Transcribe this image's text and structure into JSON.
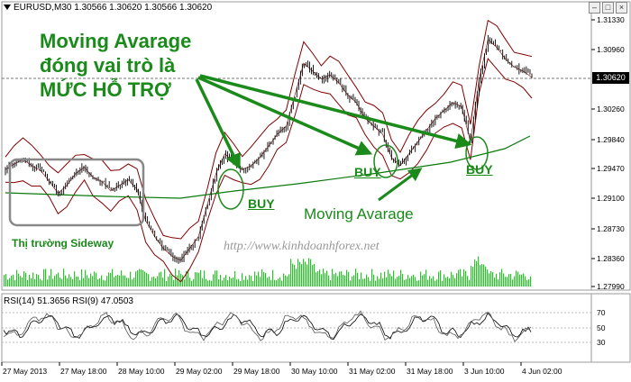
{
  "header": {
    "title": "EURUSD,M30  1.30566 1.30620 1.30566 1.30620",
    "window_buttons": [
      "–",
      "□",
      "×"
    ]
  },
  "annotations": {
    "headline": [
      "Moving Avarage",
      "đóng vai trò là",
      "MỨC HỖ TRỢ"
    ],
    "buy_labels": [
      "BUY",
      "BUY",
      "BUY"
    ],
    "moving_average_label": "Moving Avarage",
    "sideway_label": "Thị trường Sideway",
    "watermark": "http://www.kinhdoanhforex.net"
  },
  "price_axis": {
    "ticks": [
      "1.31330",
      "1.30960",
      "1.30620",
      "1.30260",
      "1.29840",
      "1.29470",
      "1.29100",
      "1.28730",
      "1.28360",
      "1.27990"
    ],
    "current_price": "1.30620"
  },
  "rsi": {
    "label": "RSI(14) 51.3656  RSI(9) 47.0503",
    "ticks": [
      "70",
      "50",
      "30"
    ]
  },
  "time_axis": {
    "ticks": [
      "27 May 2013",
      "27 May 18:00",
      "28 May 10:00",
      "29 May 02:00",
      "29 May 18:00",
      "30 May 10:00",
      "31 May 02:00",
      "31 May 18:00",
      "3 Jun 10:00",
      "4 Jun 02:00"
    ]
  },
  "colors": {
    "band": "#800000",
    "ma": "#0a7a0a",
    "annotation": "#1a8a1a",
    "volume": "#33bb33"
  },
  "chart_data": {
    "type": "line",
    "series": [
      {
        "values": [
          1.2945,
          1.2952,
          1.2958,
          1.295,
          1.2944,
          1.293,
          1.2915,
          1.2925,
          1.294,
          1.2948,
          1.2935,
          1.293,
          1.2918,
          1.2925,
          1.2932,
          1.292,
          1.288,
          1.286,
          1.2845,
          1.2835,
          1.283,
          1.2845,
          1.286,
          1.29,
          1.294,
          1.2965,
          1.2955,
          1.2945,
          1.295,
          1.296,
          1.2975,
          1.299,
          1.3,
          1.304,
          1.308,
          1.307,
          1.306,
          1.3065,
          1.3055,
          1.304,
          1.303,
          1.301,
          1.3,
          1.299,
          1.296,
          1.295,
          1.2965,
          1.298,
          1.2995,
          1.301,
          1.302,
          1.303,
          1.3025,
          1.298,
          1.306,
          1.311,
          1.31,
          1.3085,
          1.3075,
          1.307,
          1.3062
        ]
      }
    ],
    "ylim": [
      1.2799,
      1.3135
    ]
  }
}
